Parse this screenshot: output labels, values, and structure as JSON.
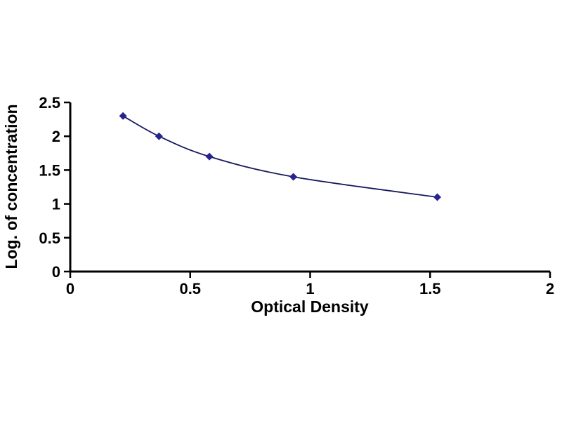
{
  "chart_data": {
    "type": "line",
    "title": "",
    "xlabel": "Optical Density",
    "ylabel": "Log. of concentration",
    "x": [
      0.22,
      0.37,
      0.58,
      0.93,
      1.53
    ],
    "y": [
      2.3,
      2.0,
      1.7,
      1.4,
      1.1
    ],
    "xlim": [
      0,
      2
    ],
    "ylim": [
      0,
      2.5
    ],
    "xticks": [
      0,
      0.5,
      1,
      1.5,
      2
    ],
    "yticks": [
      0,
      0.5,
      1,
      1.5,
      2,
      2.5
    ],
    "grid": false,
    "legend": "none",
    "marker": "diamond",
    "line_color": "#17175c",
    "marker_color": "#25258f",
    "axis_color": "#000000",
    "background_color": "#ffffff"
  }
}
